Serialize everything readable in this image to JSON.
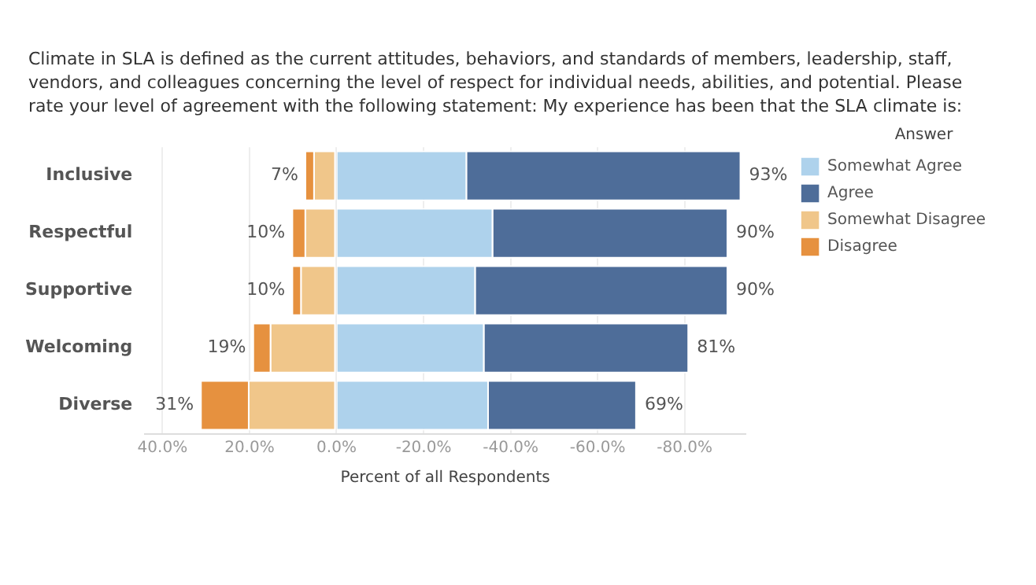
{
  "chart_data": {
    "type": "bar",
    "orientation": "horizontal",
    "stacked": true,
    "title": "Climate in SLA is defined as the current attitudes, behaviors, and standards of members, leadership, staff, vendors, and colleagues concerning the level of respect for individual needs, abilities, and potential. Please rate your level of agreement with the following statement: My experience has been that the SLA climate is:",
    "xlabel": "Percent of all Respondents",
    "legend_title": "Answer",
    "legend": "right",
    "grid": "x",
    "categories": [
      "Inclusive",
      "Respectful",
      "Supportive",
      "Welcoming",
      "Diverse"
    ],
    "series": [
      {
        "name": "Somewhat Agree",
        "color": "#aed2ec",
        "values": [
          -30,
          -36,
          -32,
          -34,
          -35
        ]
      },
      {
        "name": "Agree",
        "color": "#4e6d99",
        "values": [
          -63,
          -54,
          -58,
          -47,
          -34
        ]
      },
      {
        "name": "Somewhat Disagree",
        "color": "#f0c68a",
        "values": [
          5,
          7,
          8,
          15,
          20
        ]
      },
      {
        "name": "Disagree",
        "color": "#e6913f",
        "values": [
          2,
          3,
          2,
          4,
          11
        ]
      }
    ],
    "xlim": [
      44,
      -94
    ],
    "xticks": [
      {
        "value": 40,
        "label": "40.0%"
      },
      {
        "value": 20,
        "label": "20.0%"
      },
      {
        "value": 0,
        "label": "0.0%"
      },
      {
        "value": -20,
        "label": "-20.0%"
      },
      {
        "value": -40,
        "label": "-40.0%"
      },
      {
        "value": -60,
        "label": "-60.0%"
      },
      {
        "value": -80,
        "label": "-80.0%"
      }
    ],
    "annotations": [
      {
        "text": "7%",
        "x": 7,
        "y": "Inclusive"
      },
      {
        "text": "10%",
        "x": 10,
        "y": "Respectful"
      },
      {
        "text": "10%",
        "x": 10,
        "y": "Supportive"
      },
      {
        "text": "19%",
        "x": 19,
        "y": "Welcoming"
      },
      {
        "text": "31%",
        "x": 31,
        "y": "Diverse"
      },
      {
        "text": "93%",
        "x": -93,
        "y": "Inclusive"
      },
      {
        "text": "90%",
        "x": -90,
        "y": "Respectful"
      },
      {
        "text": "90%",
        "x": -90,
        "y": "Supportive"
      },
      {
        "text": "81%",
        "x": -81,
        "y": "Welcoming"
      },
      {
        "text": "69%",
        "x": -69,
        "y": "Diverse"
      }
    ]
  }
}
